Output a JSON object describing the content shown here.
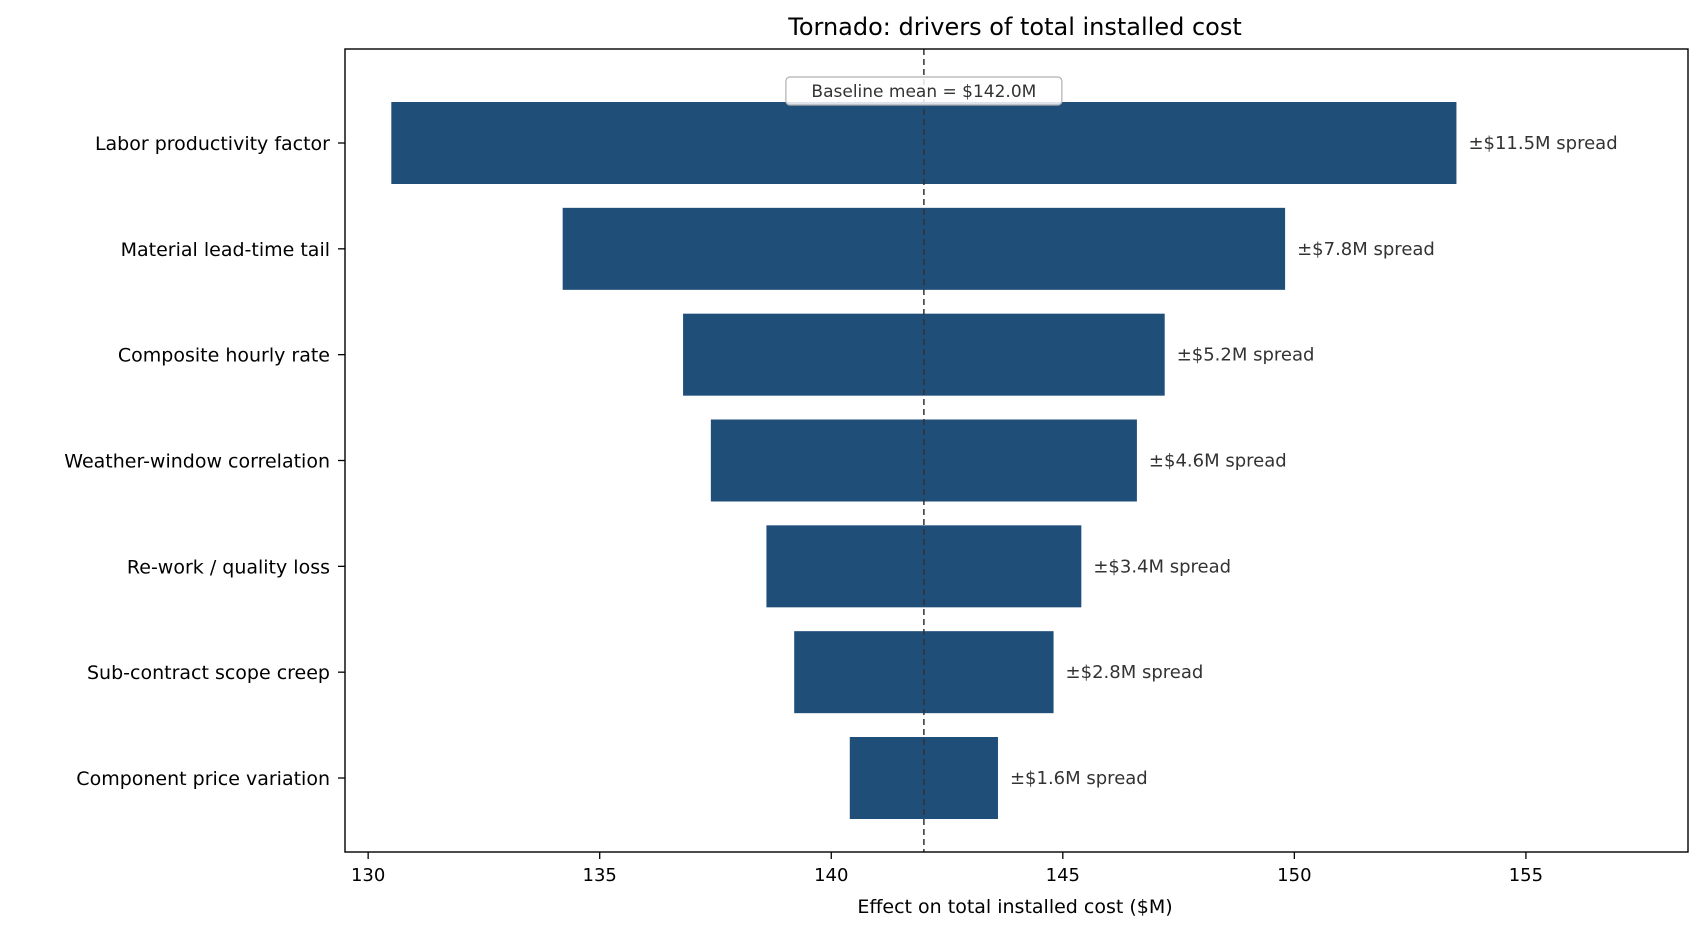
{
  "chart_data": {
    "type": "bar",
    "orientation": "horizontal",
    "title": "Tornado: drivers of total installed cost",
    "xlabel": "Effect on total installed cost  ($M)",
    "ylabel": "",
    "xlim": [
      129.5,
      158.5
    ],
    "xticks": [
      130,
      135,
      140,
      145,
      150,
      155
    ],
    "baseline": 142.0,
    "baseline_label": "Baseline mean = $142.0M",
    "bar_color": "#1f4e79",
    "grid": false,
    "categories": [
      "Labor productivity factor",
      "Material lead-time tail",
      "Composite hourly rate",
      "Weather-window correlation",
      "Re-work / quality loss",
      "Sub-contract scope creep",
      "Component price variation"
    ],
    "low": [
      130.5,
      134.2,
      136.8,
      137.4,
      138.6,
      139.2,
      140.4
    ],
    "high": [
      153.5,
      149.8,
      147.2,
      146.6,
      145.4,
      144.8,
      143.6
    ],
    "spread_labels": [
      "±$11.5M spread",
      "±$7.8M spread",
      "±$5.2M spread",
      "±$4.6M spread",
      "±$3.4M spread",
      "±$2.8M spread",
      "±$1.6M spread"
    ]
  }
}
